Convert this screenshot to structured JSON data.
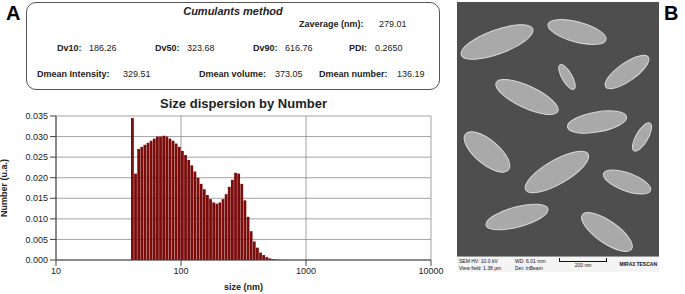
{
  "chart_data": {
    "type": "histogram",
    "title": "Size dispersion by Number",
    "x_label": "size (nm)",
    "y_label": "Number (u.a.)",
    "bins": [
      39.81,
      42.17,
      44.67,
      47.32,
      50.12,
      53.09,
      56.23,
      59.57,
      63.1,
      66.83,
      70.79,
      74.99,
      79.43,
      84.14,
      89.13,
      94.41,
      100,
      105.9,
      112.2,
      118.9,
      125.9,
      133.4,
      141.3,
      149.6,
      158.5,
      167.9,
      177.8,
      188.4,
      199.5,
      211.3,
      223.9,
      237.1,
      251.2,
      266.1,
      281.8,
      298.5,
      316.2,
      335.0,
      354.8,
      375.8,
      398.1,
      421.7,
      446.7,
      473.2,
      501.2,
      530.9,
      562.3,
      595.7,
      631.0,
      668.3,
      707.9,
      749.9,
      794.3,
      841.4,
      891.3,
      944.1,
      1000
    ],
    "counts": [
      0.0345,
      0.021,
      0.027,
      0.0275,
      0.028,
      0.0285,
      0.029,
      0.0295,
      0.03,
      0.03,
      0.0302,
      0.03,
      0.0295,
      0.029,
      0.0283,
      0.0275,
      0.0265,
      0.0255,
      0.0243,
      0.023,
      0.0215,
      0.02,
      0.0185,
      0.0172,
      0.0158,
      0.0148,
      0.014,
      0.0137,
      0.014,
      0.0148,
      0.016,
      0.0178,
      0.0195,
      0.0212,
      0.021,
      0.0185,
      0.0145,
      0.0105,
      0.007,
      0.0045,
      0.003,
      0.0018,
      0.0012,
      0.0007,
      0.0004,
      0.0002,
      0.0001,
      5e-05,
      0,
      0,
      0,
      0,
      0,
      0,
      0,
      0
    ],
    "color": "#7b0c0c",
    "log": "x",
    "xlim": [
      10,
      10000
    ],
    "xticks": [
      10,
      100,
      1000,
      10000
    ],
    "ylim": [
      0,
      0.035
    ],
    "yticks": [
      {
        "value": 0,
        "label": "0.000"
      },
      0.005,
      {
        "value": 0.01,
        "label": "0.010"
      },
      0.015,
      {
        "value": 0.02,
        "label": "0.020"
      },
      0.025,
      {
        "value": 0.03,
        "label": "0.030"
      },
      0.035
    ],
    "grid": true
  },
  "panel_a": {
    "label": "A",
    "cumulants": {
      "title": "Cumulants method",
      "fields": [
        {
          "name": "Zaverage (nm):",
          "value": "279.01"
        },
        {
          "name": "Dv10:",
          "value": "186.26"
        },
        {
          "name": "Dv50:",
          "value": "323.68"
        },
        {
          "name": "Dv90:",
          "value": "616.76"
        },
        {
          "name": "PDI:",
          "value": "0.2650"
        },
        {
          "name": "Dmean Intensity:",
          "value": "329.51"
        },
        {
          "name": "Dmean volume:",
          "value": "373.05"
        },
        {
          "name": "Dmean number:",
          "value": "136.19"
        }
      ]
    }
  },
  "panel_b": {
    "label": "B",
    "sem_info": {
      "hv": "SEM HV: 10.0 kV",
      "view_field": "View field: 1.38 μm",
      "wd": "WD: 6.01 mm",
      "det": "Det: InBeam",
      "scale_bar": "200 nm",
      "instrument": "MIRA3 TESCAN"
    }
  }
}
